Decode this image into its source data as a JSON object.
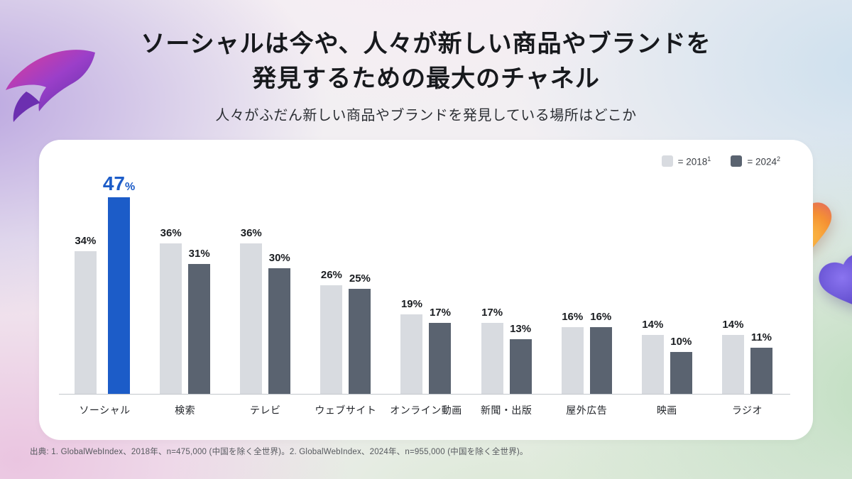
{
  "header": {
    "title_line1": "ソーシャルは今や、人々が新しい商品やブランドを",
    "title_line2": "発見するための最大のチャネル",
    "subtitle": "人々がふだん新しい商品やブランドを発見している場所はどこか"
  },
  "legend": {
    "label_2018": "= 2018",
    "sup_2018": "1",
    "label_2024": "= 2024",
    "sup_2024": "2"
  },
  "footnote": "出典: 1. GlobalWebIndex、2018年、n=475,000 (中国を除く全世界)。2. GlobalWebIndex、2024年、n=955,000 (中国を除く全世界)。",
  "colors": {
    "series_2018": "#D8DBE0",
    "series_2024": "#5A6370",
    "highlight": "#1C5CC8",
    "title_text": "#17191D",
    "axis_line": "#C3C7CC"
  },
  "decorations": [
    "bird-logo",
    "heart-orange-large",
    "heart-orange-small",
    "heart-purple"
  ],
  "chart_data": {
    "type": "bar",
    "title": "人々がふだん新しい商品やブランドを発見している場所はどこか",
    "categories": [
      "ソーシャル",
      "検索",
      "テレビ",
      "ウェブサイト",
      "オンライン動画",
      "新聞・出版",
      "屋外広告",
      "映画",
      "ラジオ"
    ],
    "series": [
      {
        "name": "2018",
        "values": [
          34,
          36,
          36,
          26,
          19,
          17,
          16,
          14,
          14
        ]
      },
      {
        "name": "2024",
        "values": [
          47,
          31,
          30,
          25,
          17,
          13,
          16,
          10,
          11
        ]
      }
    ],
    "unit": "%",
    "ylim": [
      0,
      50
    ],
    "highlight": {
      "category": "ソーシャル",
      "series": "2024"
    },
    "legend_position": "top-right",
    "grid": false
  }
}
